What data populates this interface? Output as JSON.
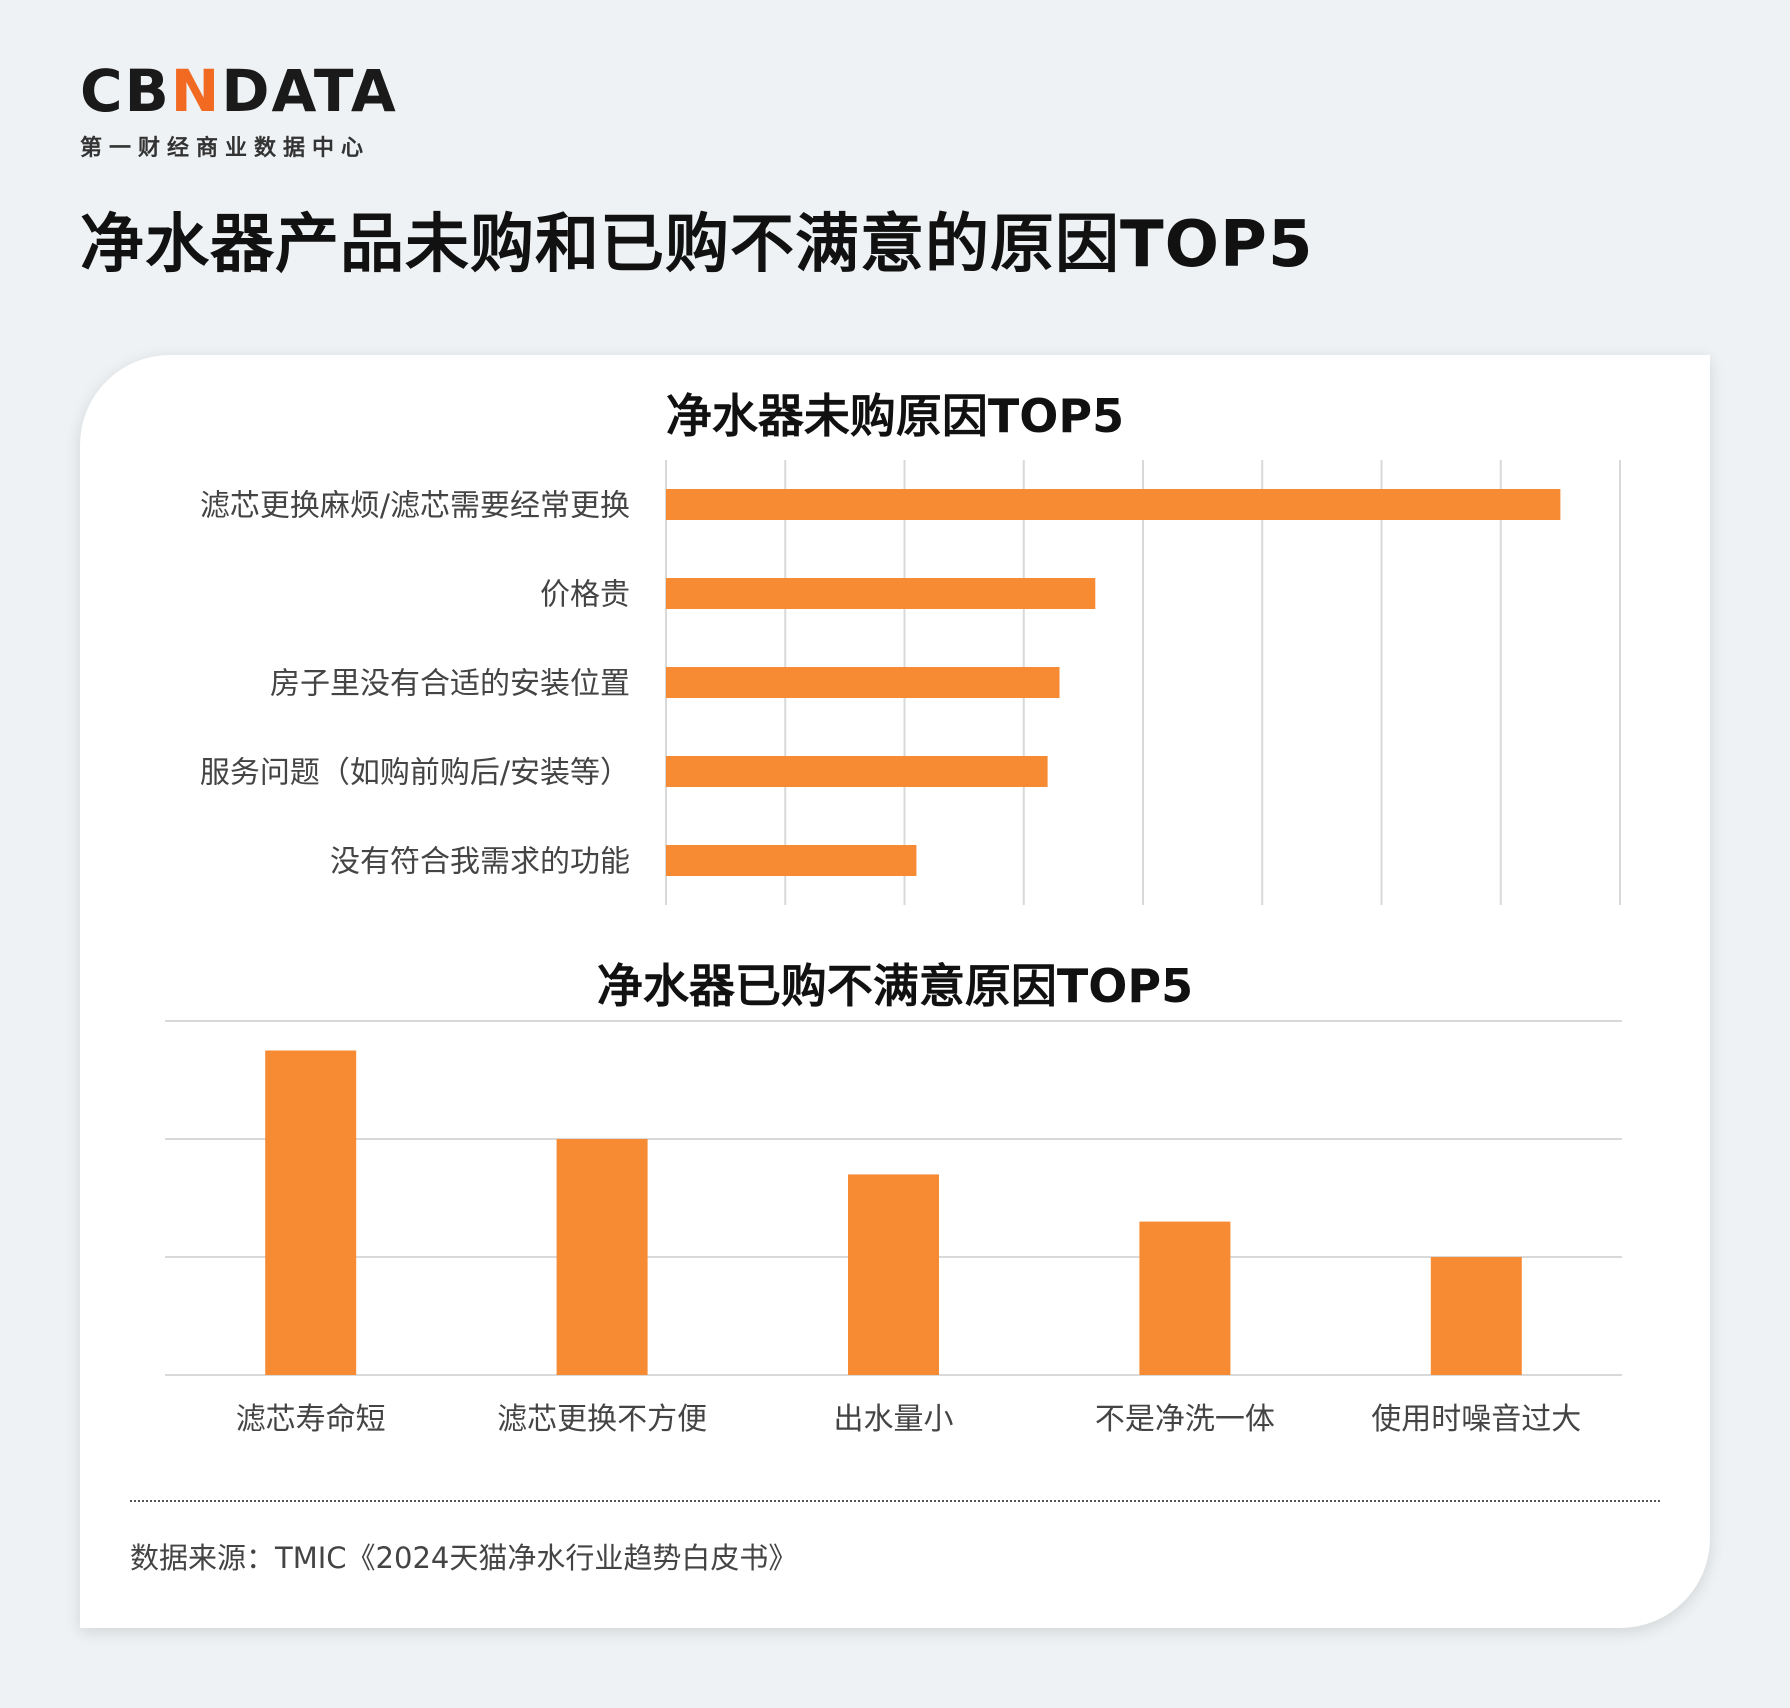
{
  "logo": {
    "word_a": "CB",
    "word_accent": "N",
    "word_b": "DATA",
    "subtitle": "第一财经商业数据中心"
  },
  "page_title": "净水器产品未购和已购不满意的原因TOP5",
  "source": "数据来源：TMIC《2024天猫净水行业趋势白皮书》",
  "colors": {
    "bar": "#f78b34",
    "grid": "#d9d9d9",
    "accent": "#f26a21"
  },
  "chart_data": [
    {
      "type": "bar",
      "orientation": "horizontal",
      "title": "净水器未购原因TOP5",
      "categories": [
        "滤芯更换麻烦/滤芯需要经常更换",
        "价格贵",
        "房子里没有合适的安装位置",
        "服务问题（如购前购后/安装等）",
        "没有符合我需求的功能"
      ],
      "values": [
        75,
        36,
        33,
        32,
        21
      ],
      "xlim": [
        0,
        80
      ],
      "grid": true,
      "tick_labels_shown": false
    },
    {
      "type": "bar",
      "orientation": "vertical",
      "title": "净水器已购不满意原因TOP5",
      "categories": [
        "滤芯寿命短",
        "滤芯更换不方便",
        "出水量小",
        "不是净洗一体",
        "使用时噪音过大"
      ],
      "values": [
        27.5,
        20,
        17,
        13,
        10
      ],
      "ylim": [
        0,
        30
      ],
      "grid": true,
      "tick_labels_shown": false
    }
  ]
}
